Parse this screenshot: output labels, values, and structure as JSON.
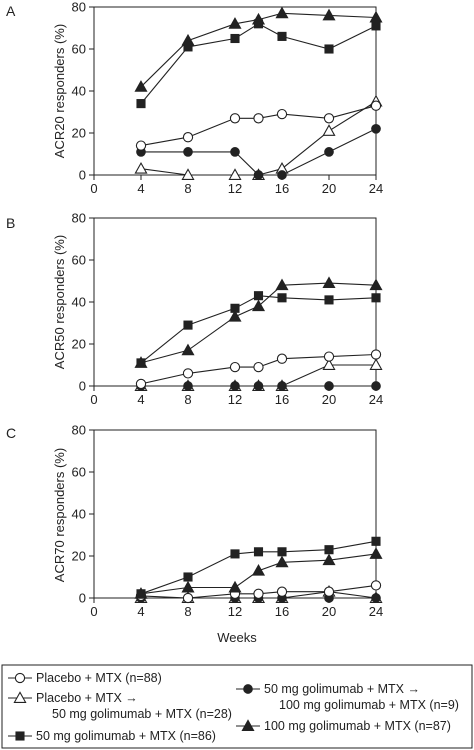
{
  "x_label": "Weeks",
  "chart_data": [
    {
      "type": "line",
      "panel_label": "A",
      "ylabel": "ACR20 responders (%)",
      "xlim": [
        0,
        24
      ],
      "ylim": [
        0,
        80
      ],
      "xticks": [
        0,
        4,
        8,
        12,
        16,
        20,
        24
      ],
      "yticks": [
        0,
        20,
        40,
        60,
        80
      ],
      "series": [
        {
          "key": "placebo",
          "x": [
            4,
            8,
            12,
            14,
            16,
            20,
            24
          ],
          "values": [
            14,
            18,
            27,
            27,
            29,
            27,
            33
          ]
        },
        {
          "key": "placebo_switch",
          "x": [
            4,
            8,
            12,
            14,
            16,
            20,
            24
          ],
          "values": [
            3,
            0,
            0,
            0,
            3,
            21,
            35
          ]
        },
        {
          "key": "gol50_switch",
          "x": [
            4,
            8,
            12,
            14,
            16,
            20,
            24
          ],
          "values": [
            11,
            11,
            11,
            0,
            0,
            11,
            22
          ]
        },
        {
          "key": "gol50",
          "x": [
            4,
            8,
            12,
            14,
            16,
            20,
            24
          ],
          "values": [
            34,
            61,
            65,
            72,
            66,
            60,
            71
          ]
        },
        {
          "key": "gol100",
          "x": [
            4,
            8,
            12,
            14,
            16,
            20,
            24
          ],
          "values": [
            42,
            64,
            72,
            74,
            77,
            76,
            75
          ]
        }
      ]
    },
    {
      "type": "line",
      "panel_label": "B",
      "ylabel": "ACR50 responders (%)",
      "xlim": [
        0,
        24
      ],
      "ylim": [
        0,
        80
      ],
      "xticks": [
        0,
        4,
        8,
        12,
        16,
        20,
        24
      ],
      "yticks": [
        0,
        20,
        40,
        60,
        80
      ],
      "series": [
        {
          "key": "placebo",
          "x": [
            4,
            8,
            12,
            14,
            16,
            20,
            24
          ],
          "values": [
            1,
            6,
            9,
            9,
            13,
            14,
            15
          ]
        },
        {
          "key": "placebo_switch",
          "x": [
            4,
            8,
            12,
            14,
            16,
            20,
            24
          ],
          "values": [
            0,
            0,
            0,
            0,
            0,
            10,
            10
          ]
        },
        {
          "key": "gol50_switch",
          "x": [
            4,
            8,
            12,
            14,
            16,
            20,
            24
          ],
          "values": [
            0,
            0,
            0,
            0,
            0,
            0,
            0
          ]
        },
        {
          "key": "gol50",
          "x": [
            4,
            8,
            12,
            14,
            16,
            20,
            24
          ],
          "values": [
            11,
            29,
            37,
            43,
            42,
            41,
            42
          ]
        },
        {
          "key": "gol100",
          "x": [
            4,
            8,
            12,
            14,
            16,
            20,
            24
          ],
          "values": [
            11,
            17,
            33,
            38,
            48,
            49,
            48
          ]
        }
      ]
    },
    {
      "type": "line",
      "panel_label": "C",
      "ylabel": "ACR70 responders (%)",
      "xlim": [
        0,
        24
      ],
      "ylim": [
        0,
        80
      ],
      "xticks": [
        0,
        4,
        8,
        12,
        16,
        20,
        24
      ],
      "yticks": [
        0,
        20,
        40,
        60,
        80
      ],
      "series": [
        {
          "key": "placebo",
          "x": [
            4,
            8,
            12,
            14,
            16,
            20,
            24
          ],
          "values": [
            1,
            0,
            2,
            2,
            3,
            3,
            6
          ]
        },
        {
          "key": "placebo_switch",
          "x": [
            4,
            8,
            12,
            14,
            16,
            20,
            24
          ],
          "values": [
            0,
            0,
            0,
            0,
            0,
            3,
            0
          ]
        },
        {
          "key": "gol50_switch",
          "x": [
            4,
            8,
            12,
            14,
            16,
            20,
            24
          ],
          "values": [
            0,
            0,
            0,
            0,
            0,
            0,
            0
          ]
        },
        {
          "key": "gol50",
          "x": [
            4,
            8,
            12,
            14,
            16,
            20,
            24
          ],
          "values": [
            2,
            10,
            21,
            22,
            22,
            23,
            27
          ]
        },
        {
          "key": "gol100",
          "x": [
            4,
            8,
            12,
            14,
            16,
            20,
            24
          ],
          "values": [
            2,
            5,
            5,
            13,
            17,
            18,
            21
          ]
        }
      ]
    }
  ],
  "legend": {
    "placebo": "Placebo + MTX (n=88)",
    "placebo_switch_line1": "Placebo + MTX →",
    "placebo_switch_line2": "50 mg golimumab + MTX (n=28)",
    "gol50": "50 mg golimumab + MTX (n=86)",
    "gol50_switch_line1": "50 mg golimumab + MTX →",
    "gol50_switch_line2": "100 mg golimumab + MTX (n=9)",
    "gol100": "100 mg golimumab + MTX (n=87)"
  },
  "markers": {
    "placebo": "open-circle",
    "placebo_switch": "open-triangle",
    "gol50_switch": "filled-circle",
    "gol50": "filled-square",
    "gol100": "filled-triangle"
  },
  "colors": {
    "ink": "#222222",
    "background": "#ffffff"
  }
}
